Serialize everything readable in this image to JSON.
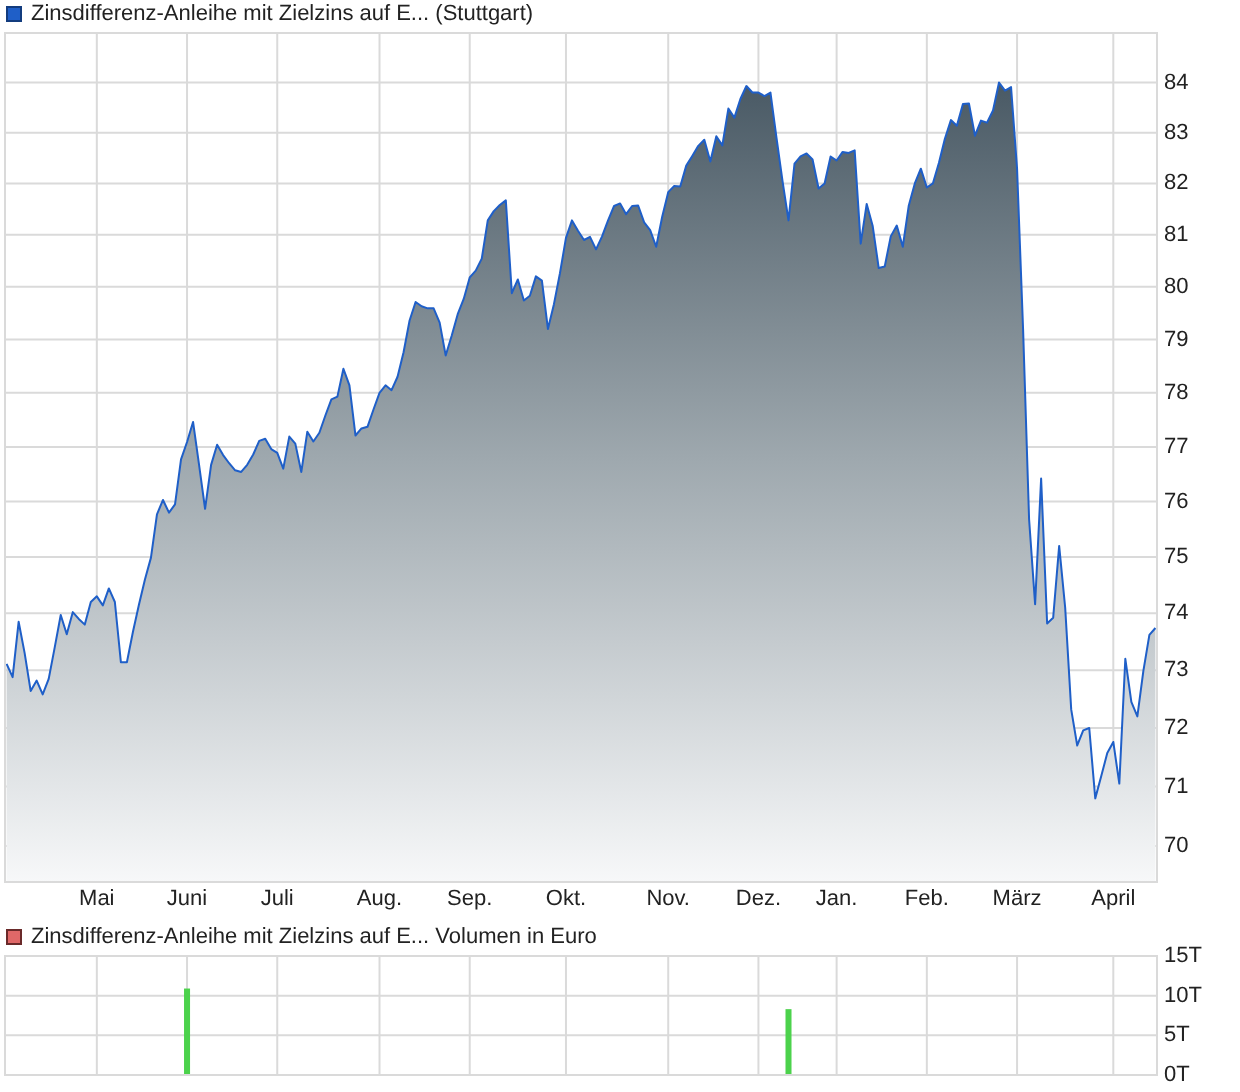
{
  "chart_data": [
    {
      "type": "area",
      "legend": "top left",
      "grid": true,
      "log": true,
      "categories": [
        null,
        null,
        null,
        null,
        null,
        null,
        null,
        null,
        null,
        null,
        null,
        null,
        null,
        null,
        null,
        "Mai",
        null,
        null,
        null,
        null,
        null,
        null,
        null,
        null,
        null,
        null,
        null,
        null,
        null,
        null,
        "Juni",
        null,
        null,
        null,
        null,
        null,
        null,
        null,
        null,
        null,
        null,
        null,
        null,
        null,
        null,
        "Juli",
        null,
        null,
        null,
        null,
        null,
        null,
        null,
        null,
        null,
        null,
        null,
        null,
        null,
        null,
        null,
        null,
        "Aug.",
        null,
        null,
        null,
        null,
        null,
        null,
        null,
        null,
        null,
        null,
        null,
        null,
        null,
        null,
        "Sep.",
        null,
        null,
        null,
        null,
        null,
        null,
        null,
        null,
        null,
        null,
        null,
        null,
        null,
        null,
        null,
        "Okt.",
        null,
        null,
        null,
        null,
        null,
        null,
        null,
        null,
        null,
        null,
        null,
        null,
        null,
        null,
        null,
        null,
        "Nov.",
        null,
        null,
        null,
        null,
        null,
        null,
        null,
        null,
        null,
        null,
        null,
        null,
        null,
        null,
        "Dez.",
        null,
        null,
        null,
        null,
        null,
        null,
        null,
        null,
        null,
        null,
        null,
        null,
        "Jan.",
        null,
        null,
        null,
        null,
        null,
        null,
        null,
        null,
        null,
        null,
        null,
        null,
        null,
        null,
        "Feb.",
        null,
        null,
        null,
        null,
        null,
        null,
        null,
        null,
        null,
        null,
        null,
        null,
        null,
        null,
        "März",
        null,
        null,
        null,
        null,
        null,
        null,
        null,
        null,
        null,
        null,
        null,
        null,
        null,
        null,
        null,
        "April",
        null,
        null,
        null,
        null,
        null,
        null,
        null
      ],
      "ylim": [
        69.4,
        85
      ],
      "yticks": [
        70,
        71,
        72,
        73,
        74,
        75,
        76,
        77,
        78,
        79,
        80,
        81,
        82,
        83,
        84
      ],
      "series": [
        {
          "name": "Zinsdifferenz-Anleihe mit Zielzins auf E... (Stuttgart)",
          "color": "#1f5fc8",
          "values": [
            73.11,
            72.88,
            73.85,
            73.3,
            72.64,
            72.82,
            72.58,
            72.85,
            73.4,
            73.97,
            73.63,
            74.02,
            73.9,
            73.8,
            74.2,
            74.3,
            74.14,
            74.44,
            74.2,
            73.14,
            73.14,
            73.67,
            74.15,
            74.6,
            74.99,
            75.77,
            76.03,
            75.8,
            75.95,
            76.77,
            77.09,
            77.46,
            76.67,
            75.87,
            76.67,
            77.04,
            76.85,
            76.7,
            76.57,
            76.54,
            76.67,
            76.86,
            77.11,
            77.15,
            76.96,
            76.89,
            76.6,
            77.19,
            77.06,
            76.54,
            77.28,
            77.1,
            77.26,
            77.58,
            77.88,
            77.93,
            78.45,
            78.14,
            77.21,
            77.34,
            77.37,
            77.69,
            78.0,
            78.14,
            78.05,
            78.3,
            78.76,
            79.36,
            79.71,
            79.63,
            79.59,
            79.59,
            79.32,
            78.7,
            79.07,
            79.48,
            79.77,
            80.18,
            80.31,
            80.54,
            81.28,
            81.46,
            81.58,
            81.67,
            79.88,
            80.14,
            79.74,
            79.83,
            80.2,
            80.12,
            79.2,
            79.67,
            80.26,
            80.94,
            81.28,
            81.08,
            80.9,
            80.96,
            80.72,
            80.97,
            81.28,
            81.56,
            81.61,
            81.4,
            81.56,
            81.57,
            81.24,
            81.09,
            80.77,
            81.35,
            81.83,
            81.95,
            81.94,
            82.35,
            82.54,
            82.74,
            82.86,
            82.43,
            82.93,
            82.75,
            83.48,
            83.3,
            83.67,
            83.93,
            83.8,
            83.8,
            83.73,
            83.8,
            82.9,
            82.05,
            81.28,
            82.39,
            82.53,
            82.59,
            82.47,
            81.9,
            82.0,
            82.53,
            82.45,
            82.62,
            82.6,
            82.65,
            80.83,
            81.6,
            81.17,
            80.36,
            80.39,
            80.97,
            81.18,
            80.77,
            81.57,
            82.0,
            82.29,
            81.92,
            82.0,
            82.4,
            82.88,
            83.25,
            83.14,
            83.57,
            83.58,
            82.94,
            83.24,
            83.2,
            83.44,
            84.0,
            83.84,
            83.91,
            82.29,
            79.2,
            75.68,
            74.16,
            76.42,
            73.82,
            73.92,
            75.2,
            74.1,
            72.32,
            71.7,
            71.96,
            72.0,
            70.8,
            71.18,
            71.57,
            71.76,
            71.05,
            73.2,
            72.45,
            72.2,
            72.99,
            73.62,
            73.74
          ]
        }
      ]
    },
    {
      "type": "bar",
      "title": "Zinsdifferenz-Anleihe mit Zielzins auf E... Volumen in Euro",
      "grid": true,
      "tick_labels": "y",
      "categories": [
        null,
        null,
        null,
        null,
        null,
        null,
        null,
        null,
        null,
        null,
        null,
        null,
        null,
        null,
        null,
        null,
        null,
        null,
        null,
        null,
        null,
        null,
        null,
        null,
        null,
        null,
        null,
        null,
        null,
        null,
        null,
        null,
        null,
        null,
        null,
        null,
        null,
        null,
        null,
        null,
        null,
        null,
        null,
        null,
        null,
        null,
        null,
        null,
        null,
        null,
        null,
        null,
        null,
        null,
        null,
        null,
        null,
        null,
        null,
        null,
        null,
        null,
        null,
        null,
        null,
        null,
        null,
        null,
        null,
        null,
        null,
        null,
        null,
        null,
        null,
        null,
        null,
        null,
        null,
        null,
        null,
        null,
        null,
        null,
        null,
        null,
        null,
        null,
        null,
        null,
        null,
        null,
        null,
        null,
        null,
        null,
        null,
        null,
        null,
        null,
        null,
        null,
        null,
        null,
        null,
        null,
        null,
        null,
        null,
        null,
        null,
        null,
        null,
        null,
        null,
        null,
        null,
        null,
        null,
        null,
        null,
        null,
        null,
        null,
        null,
        null,
        null,
        null,
        null,
        null,
        null,
        null,
        null,
        null,
        null,
        null,
        null,
        null,
        null,
        null,
        null,
        null,
        null,
        null,
        null,
        null,
        null,
        null,
        null,
        null,
        null,
        null,
        null,
        null,
        null,
        null,
        null,
        null,
        null,
        null,
        null,
        null,
        null,
        null,
        null,
        null,
        null,
        null,
        null,
        null,
        null,
        null,
        null,
        null,
        null,
        null,
        null,
        null,
        null,
        null,
        null,
        null,
        null,
        null,
        null,
        null,
        null,
        null,
        null,
        null,
        null,
        null
      ],
      "ylim": [
        0,
        15
      ],
      "yticks": [
        {
          "value": 0,
          "label": "0T"
        },
        {
          "value": 5,
          "label": "5T"
        },
        {
          "value": 10,
          "label": "10T"
        },
        {
          "value": 15,
          "label": "15T"
        }
      ],
      "series": [
        {
          "color": "#4cd24c",
          "values": [
            null,
            null,
            null,
            null,
            null,
            null,
            null,
            null,
            null,
            null,
            null,
            null,
            null,
            null,
            null,
            null,
            null,
            null,
            null,
            null,
            null,
            null,
            null,
            null,
            null,
            null,
            null,
            null,
            null,
            null,
            10.9,
            null,
            null,
            null,
            null,
            null,
            null,
            null,
            null,
            null,
            null,
            null,
            null,
            null,
            null,
            null,
            null,
            null,
            null,
            null,
            null,
            null,
            null,
            null,
            null,
            null,
            null,
            null,
            null,
            null,
            null,
            null,
            null,
            null,
            null,
            null,
            null,
            null,
            null,
            null,
            null,
            null,
            null,
            null,
            null,
            null,
            null,
            null,
            null,
            null,
            null,
            null,
            null,
            null,
            null,
            null,
            null,
            null,
            null,
            null,
            null,
            null,
            null,
            null,
            null,
            null,
            null,
            null,
            null,
            null,
            null,
            null,
            null,
            null,
            null,
            null,
            null,
            null,
            null,
            null,
            null,
            null,
            null,
            null,
            null,
            null,
            null,
            null,
            null,
            null,
            null,
            null,
            null,
            null,
            null,
            null,
            null,
            null,
            null,
            null,
            8.3,
            null,
            null,
            null,
            null,
            null,
            null,
            null,
            null,
            null,
            null,
            null,
            null,
            null,
            null,
            null,
            null,
            null,
            null,
            null,
            null,
            null,
            null,
            null,
            null,
            null,
            null,
            null,
            null,
            null,
            null,
            null,
            null,
            null,
            null,
            null,
            null,
            null,
            null,
            null,
            null,
            null,
            null,
            null,
            null,
            null,
            null,
            null,
            null,
            null,
            null,
            null,
            null,
            null,
            null,
            null,
            null,
            null,
            null,
            null,
            null,
            null
          ]
        }
      ]
    }
  ]
}
